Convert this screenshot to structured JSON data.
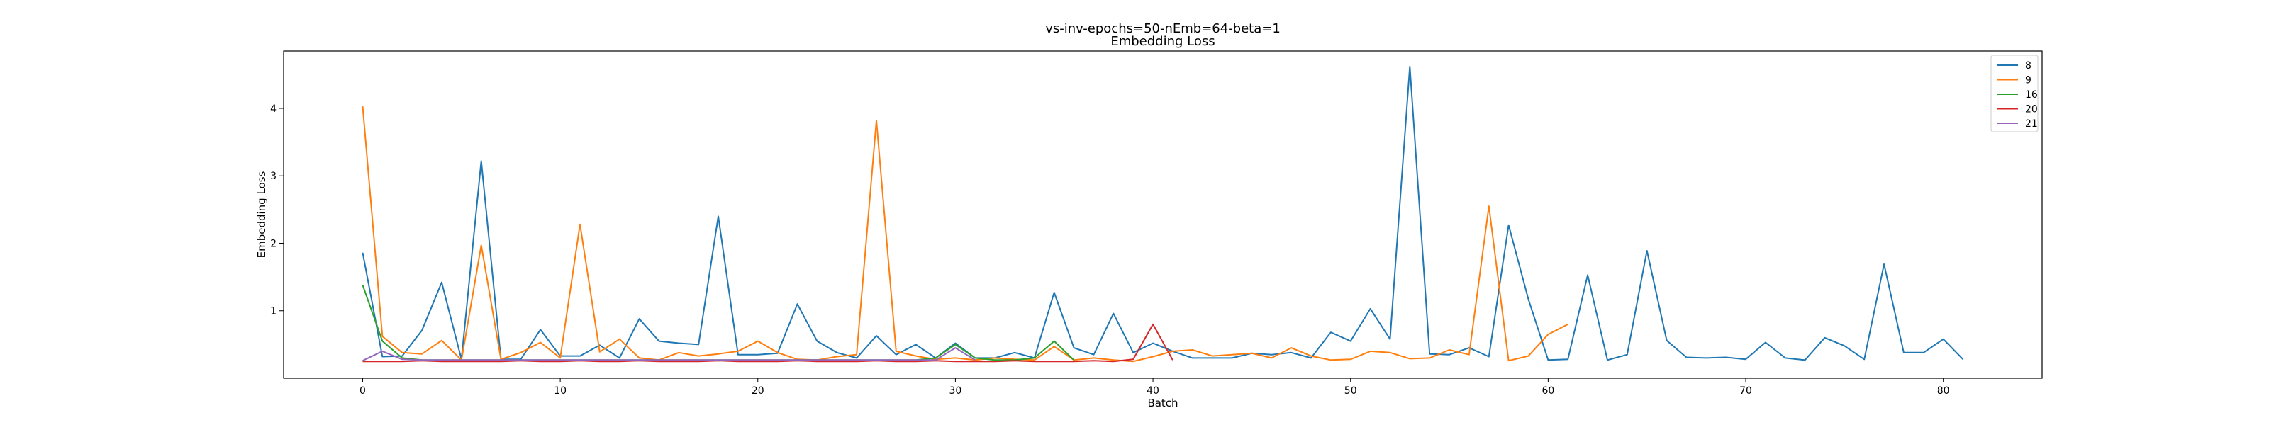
{
  "chart_data": {
    "type": "line",
    "title": "vs-inv-epochs=50-nEmb=64-beta=1",
    "subtitle": "Embedding Loss",
    "xlabel": "Batch",
    "ylabel": "Embedding Loss",
    "xlim": [
      -4,
      85
    ],
    "ylim": [
      0,
      4.85
    ],
    "xticks": [
      0,
      10,
      20,
      30,
      40,
      50,
      60,
      70,
      80
    ],
    "yticks": [
      1,
      2,
      3,
      4
    ],
    "grid": false,
    "legend": "top-right",
    "series": [
      {
        "name": "8",
        "color": "#1f77b4",
        "values": [
          1.86,
          0.32,
          0.33,
          0.71,
          1.42,
          0.28,
          3.22,
          0.28,
          0.28,
          0.72,
          0.33,
          0.33,
          0.49,
          0.3,
          0.88,
          0.55,
          0.52,
          0.5,
          2.4,
          0.35,
          0.35,
          0.37,
          1.1,
          0.55,
          0.38,
          0.3,
          0.63,
          0.35,
          0.5,
          0.3,
          0.52,
          0.3,
          0.3,
          0.38,
          0.3,
          1.27,
          0.45,
          0.35,
          0.96,
          0.38,
          0.52,
          0.4,
          0.3,
          0.3,
          0.3,
          0.37,
          0.35,
          0.38,
          0.3,
          0.68,
          0.55,
          1.03,
          0.58,
          4.62,
          0.36,
          0.35,
          0.45,
          0.32,
          2.27,
          1.17,
          0.27,
          0.28,
          1.53,
          0.27,
          0.35,
          1.89,
          0.56,
          0.31,
          0.3,
          0.31,
          0.28,
          0.53,
          0.3,
          0.27,
          0.6,
          0.48,
          0.28,
          1.69,
          0.38,
          0.38,
          0.58,
          0.28
        ]
      },
      {
        "name": "9",
        "color": "#ff7f0e",
        "values": [
          4.03,
          0.62,
          0.38,
          0.36,
          0.56,
          0.27,
          1.97,
          0.28,
          0.38,
          0.53,
          0.3,
          2.28,
          0.39,
          0.58,
          0.3,
          0.27,
          0.38,
          0.33,
          0.36,
          0.4,
          0.55,
          0.38,
          0.28,
          0.27,
          0.32,
          0.35,
          3.82,
          0.4,
          0.33,
          0.28,
          0.3,
          0.27,
          0.3,
          0.28,
          0.27,
          0.47,
          0.27,
          0.3,
          0.27,
          0.25,
          0.32,
          0.4,
          0.42,
          0.33,
          0.35,
          0.37,
          0.3,
          0.45,
          0.33,
          0.27,
          0.28,
          0.4,
          0.38,
          0.29,
          0.3,
          0.42,
          0.35,
          2.55,
          0.26,
          0.33,
          0.65,
          0.8
        ]
      },
      {
        "name": "16",
        "color": "#2ca02c",
        "values": [
          1.38,
          0.55,
          0.3,
          0.27,
          0.27,
          0.27,
          0.27,
          0.27,
          0.27,
          0.27,
          0.27,
          0.27,
          0.27,
          0.27,
          0.27,
          0.27,
          0.27,
          0.27,
          0.27,
          0.27,
          0.27,
          0.27,
          0.27,
          0.27,
          0.27,
          0.27,
          0.27,
          0.27,
          0.27,
          0.3,
          0.5,
          0.3,
          0.27,
          0.27,
          0.3,
          0.55,
          0.27
        ]
      },
      {
        "name": "20",
        "color": "#d62728",
        "values": [
          0.25,
          0.25,
          0.25,
          0.26,
          0.25,
          0.25,
          0.25,
          0.25,
          0.26,
          0.25,
          0.25,
          0.26,
          0.25,
          0.25,
          0.26,
          0.25,
          0.25,
          0.25,
          0.26,
          0.25,
          0.25,
          0.25,
          0.26,
          0.25,
          0.25,
          0.25,
          0.26,
          0.25,
          0.25,
          0.26,
          0.25,
          0.25,
          0.25,
          0.26,
          0.25,
          0.25,
          0.25,
          0.26,
          0.25,
          0.28,
          0.8,
          0.27
        ]
      },
      {
        "name": "21",
        "color": "#9467bd",
        "values": [
          0.26,
          0.4,
          0.28,
          0.27,
          0.27,
          0.27,
          0.27,
          0.27,
          0.27,
          0.27,
          0.27,
          0.27,
          0.27,
          0.27,
          0.27,
          0.27,
          0.27,
          0.27,
          0.27,
          0.27,
          0.27,
          0.27,
          0.27,
          0.27,
          0.27,
          0.27,
          0.27,
          0.27,
          0.27,
          0.27,
          0.45,
          0.27
        ]
      }
    ]
  }
}
